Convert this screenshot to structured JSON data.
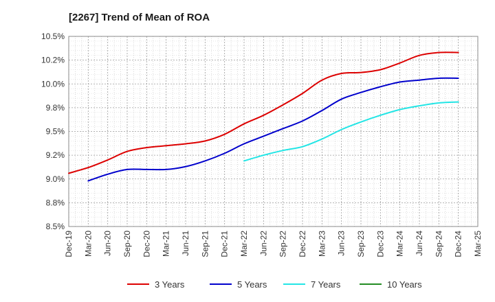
{
  "chart_data": {
    "type": "line",
    "title": "[2267]  Trend of Mean of ROA",
    "xlabel": "",
    "ylabel": "",
    "categories": [
      "Dec-19",
      "Mar-20",
      "Jun-20",
      "Sep-20",
      "Dec-20",
      "Mar-21",
      "Jun-21",
      "Sep-21",
      "Dec-21",
      "Mar-22",
      "Jun-22",
      "Sep-22",
      "Dec-22",
      "Mar-23",
      "Jun-23",
      "Sep-23",
      "Dec-23",
      "Mar-24",
      "Jun-24",
      "Sep-24",
      "Dec-24",
      "Mar-25"
    ],
    "yticks": [
      "8.5%",
      "8.8%",
      "9.0%",
      "9.2%",
      "9.5%",
      "9.8%",
      "10.0%",
      "10.2%",
      "10.5%"
    ],
    "ylim": [
      8.5,
      10.5
    ],
    "grid": true,
    "legend_position": "bottom",
    "series": [
      {
        "name": "3 Years",
        "color": "#dd0000",
        "values": [
          9.06,
          9.12,
          9.2,
          9.29,
          9.33,
          9.35,
          9.37,
          9.4,
          9.47,
          9.58,
          9.67,
          9.78,
          9.9,
          10.04,
          10.11,
          10.12,
          10.15,
          10.22,
          10.3,
          10.33,
          10.33,
          null
        ]
      },
      {
        "name": "5 Years",
        "color": "#0000cc",
        "values": [
          null,
          8.98,
          9.05,
          9.1,
          9.1,
          9.1,
          9.13,
          9.19,
          9.27,
          9.37,
          9.45,
          9.53,
          9.61,
          9.72,
          9.84,
          9.91,
          9.97,
          10.02,
          10.04,
          10.06,
          10.06,
          null
        ]
      },
      {
        "name": "7 Years",
        "color": "#22e5e5",
        "values": [
          null,
          null,
          null,
          null,
          null,
          null,
          null,
          null,
          null,
          9.19,
          9.25,
          9.3,
          9.34,
          9.42,
          9.52,
          9.6,
          9.67,
          9.73,
          9.77,
          9.8,
          9.81,
          null
        ]
      },
      {
        "name": "10 Years",
        "color": "#228b22",
        "values": [
          null,
          null,
          null,
          null,
          null,
          null,
          null,
          null,
          null,
          null,
          null,
          null,
          null,
          null,
          null,
          null,
          null,
          null,
          null,
          null,
          null,
          null
        ]
      }
    ]
  }
}
